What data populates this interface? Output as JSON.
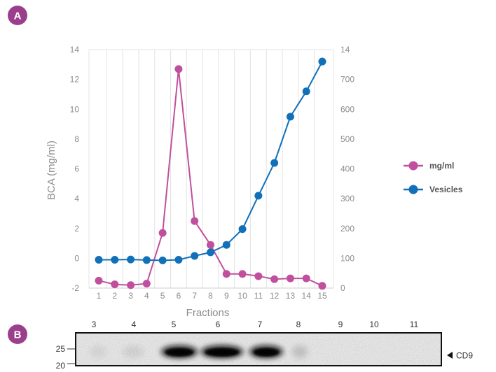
{
  "panels": {
    "a_label": "A",
    "b_label": "B",
    "badge_color": "#9b3f8c"
  },
  "chart_data": {
    "type": "line",
    "x": [
      1,
      2,
      3,
      4,
      5,
      6,
      7,
      8,
      9,
      10,
      11,
      12,
      13,
      14,
      15
    ],
    "xlabel": "Fractions",
    "ylabel": "BCA (mg/ml)",
    "ylim": [
      -2,
      14
    ],
    "yticks": [
      -2,
      0,
      2,
      4,
      6,
      8,
      10,
      12,
      14
    ],
    "y2lim": [
      0,
      800
    ],
    "y2ticks": [
      0,
      100,
      200,
      300,
      400,
      500,
      600,
      700
    ],
    "y2top_label": "14",
    "grid": "vertical",
    "legend": "right",
    "series": [
      {
        "name": "mg/ml",
        "axis": "left",
        "color": "#c0509e",
        "values": [
          -1.5,
          -1.75,
          -1.8,
          -1.7,
          1.7,
          12.7,
          2.5,
          0.9,
          -1.05,
          -1.05,
          -1.2,
          -1.4,
          -1.35,
          -1.35,
          -1.85
        ]
      },
      {
        "name": "Vesicles",
        "axis": "right",
        "color": "#1170b8",
        "values": [
          95,
          95,
          96,
          94,
          93,
          95,
          108,
          120,
          145,
          198,
          310,
          420,
          575,
          660,
          760
        ]
      }
    ]
  },
  "blot": {
    "lane_labels": [
      "3",
      "4",
      "5",
      "6",
      "7",
      "8",
      "9",
      "10",
      "11"
    ],
    "mw_markers": [
      "25",
      "20"
    ],
    "band_label": "CD9",
    "arrow_icon": "left-pointing-triangle"
  }
}
